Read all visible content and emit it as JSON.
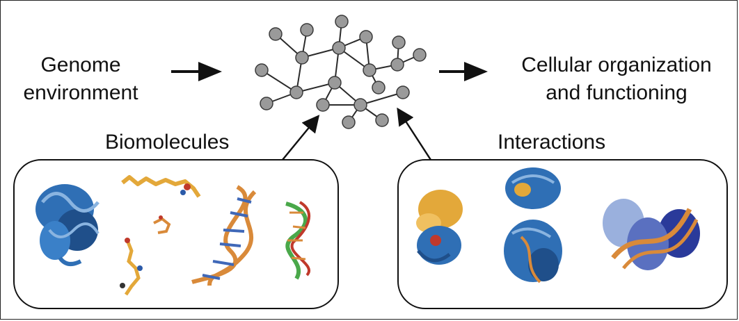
{
  "labels": {
    "genome_line1": "Genome",
    "genome_line2": "environment",
    "cellular_line1": "Cellular organization",
    "cellular_line2": "and functioning",
    "biomolecules": "Biomolecules",
    "interactions": "Interactions"
  },
  "colors": {
    "protein_blue": "#2f6fb5",
    "protein_dark": "#1f4f8a",
    "ligand_orange": "#e3a83a",
    "dna_orange": "#d98a3a",
    "dna_blue": "#3f68b8",
    "node_fill": "#9a9a9a",
    "node_stroke": "#3a3a3a",
    "arrow": "#111111"
  }
}
